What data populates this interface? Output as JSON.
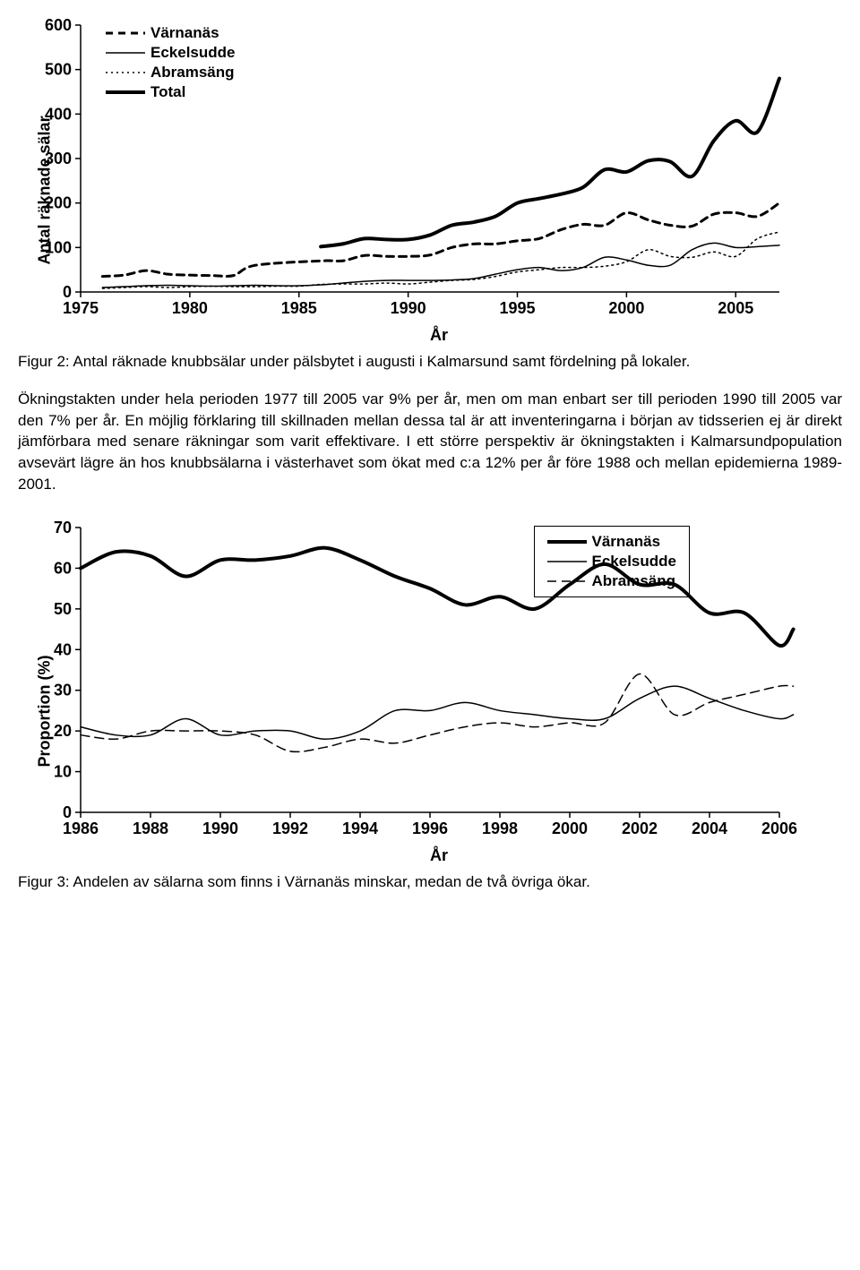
{
  "chart1": {
    "type": "line",
    "ylabel": "Antal räknade sälar",
    "xlabel": "År",
    "xlim": [
      1975,
      2007
    ],
    "ylim": [
      0,
      600
    ],
    "xticks": [
      1975,
      1980,
      1985,
      1990,
      1995,
      2000,
      2005
    ],
    "yticks": [
      0,
      100,
      200,
      300,
      400,
      500,
      600
    ],
    "background_color": "#ffffff",
    "axis_color": "#000000",
    "series": [
      {
        "name": "Värnanäs",
        "dash": "8,6",
        "width": 3,
        "color": "#000000",
        "data": [
          [
            1976,
            35
          ],
          [
            1977,
            38
          ],
          [
            1978,
            48
          ],
          [
            1979,
            40
          ],
          [
            1980,
            38
          ],
          [
            1981,
            37
          ],
          [
            1982,
            37
          ],
          [
            1983,
            60
          ],
          [
            1986,
            70
          ],
          [
            1987,
            70
          ],
          [
            1988,
            82
          ],
          [
            1989,
            80
          ],
          [
            1990,
            80
          ],
          [
            1991,
            83
          ],
          [
            1992,
            100
          ],
          [
            1993,
            108
          ],
          [
            1994,
            108
          ],
          [
            1995,
            115
          ],
          [
            1996,
            120
          ],
          [
            1997,
            140
          ],
          [
            1998,
            152
          ],
          [
            1999,
            150
          ],
          [
            2000,
            178
          ],
          [
            2001,
            162
          ],
          [
            2002,
            150
          ],
          [
            2003,
            148
          ],
          [
            2004,
            175
          ],
          [
            2005,
            178
          ],
          [
            2006,
            170
          ],
          [
            2007,
            200
          ]
        ]
      },
      {
        "name": "Eckelsudde",
        "dash": "none",
        "width": 1.5,
        "color": "#000000",
        "data": [
          [
            1976,
            10
          ],
          [
            1977,
            12
          ],
          [
            1978,
            14
          ],
          [
            1979,
            15
          ],
          [
            1980,
            14
          ],
          [
            1981,
            13
          ],
          [
            1982,
            14
          ],
          [
            1983,
            15
          ],
          [
            1984,
            14
          ],
          [
            1985,
            14
          ],
          [
            1986,
            16
          ],
          [
            1987,
            20
          ],
          [
            1988,
            24
          ],
          [
            1989,
            26
          ],
          [
            1990,
            26
          ],
          [
            1991,
            26
          ],
          [
            1992,
            27
          ],
          [
            1993,
            30
          ],
          [
            1994,
            40
          ],
          [
            1995,
            50
          ],
          [
            1996,
            55
          ],
          [
            1997,
            48
          ],
          [
            1998,
            55
          ],
          [
            1999,
            78
          ],
          [
            2000,
            72
          ],
          [
            2001,
            60
          ],
          [
            2002,
            60
          ],
          [
            2003,
            95
          ],
          [
            2004,
            110
          ],
          [
            2005,
            100
          ],
          [
            2006,
            102
          ],
          [
            2007,
            105
          ]
        ]
      },
      {
        "name": "Abramsäng",
        "dash": "2,4",
        "width": 1.5,
        "color": "#000000",
        "data": [
          [
            1976,
            8
          ],
          [
            1977,
            10
          ],
          [
            1978,
            12
          ],
          [
            1979,
            10
          ],
          [
            1980,
            12
          ],
          [
            1981,
            13
          ],
          [
            1982,
            12
          ],
          [
            1983,
            12
          ],
          [
            1984,
            13
          ],
          [
            1985,
            13
          ],
          [
            1986,
            17
          ],
          [
            1987,
            18
          ],
          [
            1988,
            18
          ],
          [
            1989,
            20
          ],
          [
            1990,
            18
          ],
          [
            1991,
            22
          ],
          [
            1992,
            26
          ],
          [
            1993,
            28
          ],
          [
            1994,
            35
          ],
          [
            1995,
            45
          ],
          [
            1996,
            50
          ],
          [
            1997,
            55
          ],
          [
            1998,
            55
          ],
          [
            1999,
            58
          ],
          [
            2000,
            68
          ],
          [
            2001,
            95
          ],
          [
            2002,
            80
          ],
          [
            2003,
            78
          ],
          [
            2004,
            90
          ],
          [
            2005,
            80
          ],
          [
            2006,
            120
          ],
          [
            2007,
            135
          ]
        ]
      },
      {
        "name": "Total",
        "dash": "none",
        "width": 4,
        "color": "#000000",
        "data": [
          [
            1986,
            102
          ],
          [
            1987,
            108
          ],
          [
            1988,
            120
          ],
          [
            1989,
            118
          ],
          [
            1990,
            118
          ],
          [
            1991,
            128
          ],
          [
            1992,
            150
          ],
          [
            1993,
            157
          ],
          [
            1994,
            170
          ],
          [
            1995,
            200
          ],
          [
            1996,
            210
          ],
          [
            1997,
            220
          ],
          [
            1998,
            235
          ],
          [
            1999,
            275
          ],
          [
            2000,
            270
          ],
          [
            2001,
            295
          ],
          [
            2002,
            293
          ],
          [
            2003,
            260
          ],
          [
            2004,
            340
          ],
          [
            2005,
            385
          ],
          [
            2006,
            360
          ],
          [
            2007,
            480
          ]
        ]
      }
    ]
  },
  "caption1": "Figur 2: Antal räknade knubbsälar under pälsbytet i augusti i Kalmarsund samt fördelning på lokaler.",
  "paragraph": "Ökningstakten under hela perioden 1977 till 2005 var 9% per år, men om man enbart ser till perioden 1990 till 2005 var den 7% per år. En möjlig förklaring till skillnaden mellan dessa tal är att inventeringarna i början av tidsserien ej är direkt jämförbara med senare räkningar som varit effektivare. I ett större perspektiv är ökningstakten i Kalmarsundpopulation avsevärt lägre än hos knubbsälarna i västerhavet som ökat med c:a 12% per år före 1988 och mellan epidemierna 1989-2001.",
  "chart2": {
    "type": "line",
    "ylabel": "Proportion (%)",
    "xlabel": "År",
    "xlim": [
      1986,
      2006
    ],
    "ylim": [
      0,
      70
    ],
    "xticks": [
      1986,
      1988,
      1990,
      1992,
      1994,
      1996,
      1998,
      2000,
      2002,
      2004,
      2006
    ],
    "yticks": [
      0,
      10,
      20,
      30,
      40,
      50,
      60,
      70
    ],
    "background_color": "#ffffff",
    "axis_color": "#000000",
    "series": [
      {
        "name": "Värnanäs",
        "dash": "none",
        "width": 4,
        "color": "#000000",
        "data": [
          [
            1986,
            60
          ],
          [
            1987,
            64
          ],
          [
            1988,
            63
          ],
          [
            1989,
            58
          ],
          [
            1990,
            62
          ],
          [
            1991,
            62
          ],
          [
            1992,
            63
          ],
          [
            1993,
            65
          ],
          [
            1994,
            62
          ],
          [
            1995,
            58
          ],
          [
            1996,
            55
          ],
          [
            1997,
            51
          ],
          [
            1998,
            53
          ],
          [
            1999,
            50
          ],
          [
            2000,
            56
          ],
          [
            2001,
            61
          ],
          [
            2002,
            56
          ],
          [
            2003,
            56
          ],
          [
            2004,
            49
          ],
          [
            2005,
            49
          ],
          [
            2006,
            41
          ],
          [
            2006.4,
            45
          ]
        ]
      },
      {
        "name": "Eckelsudde",
        "dash": "none",
        "width": 1.5,
        "color": "#000000",
        "data": [
          [
            1986,
            21
          ],
          [
            1987,
            19
          ],
          [
            1988,
            19
          ],
          [
            1989,
            23
          ],
          [
            1990,
            19
          ],
          [
            1991,
            20
          ],
          [
            1992,
            20
          ],
          [
            1993,
            18
          ],
          [
            1994,
            20
          ],
          [
            1995,
            25
          ],
          [
            1996,
            25
          ],
          [
            1997,
            27
          ],
          [
            1998,
            25
          ],
          [
            1999,
            24
          ],
          [
            2000,
            23
          ],
          [
            2001,
            23
          ],
          [
            2002,
            28
          ],
          [
            2003,
            31
          ],
          [
            2004,
            28
          ],
          [
            2005,
            25
          ],
          [
            2006,
            23
          ],
          [
            2006.4,
            24
          ]
        ]
      },
      {
        "name": "Abramsäng",
        "dash": "10,6",
        "width": 1.5,
        "color": "#000000",
        "data": [
          [
            1986,
            19
          ],
          [
            1987,
            18
          ],
          [
            1988,
            20
          ],
          [
            1989,
            20
          ],
          [
            1990,
            20
          ],
          [
            1991,
            19
          ],
          [
            1992,
            15
          ],
          [
            1993,
            16
          ],
          [
            1994,
            18
          ],
          [
            1995,
            17
          ],
          [
            1996,
            19
          ],
          [
            1997,
            21
          ],
          [
            1998,
            22
          ],
          [
            1999,
            21
          ],
          [
            2000,
            22
          ],
          [
            2001,
            22
          ],
          [
            2002,
            34
          ],
          [
            2003,
            24
          ],
          [
            2004,
            27
          ],
          [
            2005,
            29
          ],
          [
            2006,
            31
          ],
          [
            2006.4,
            31
          ]
        ]
      }
    ]
  },
  "caption2": "Figur 3: Andelen av sälarna som finns i Värnanäs minskar, medan de två övriga ökar."
}
